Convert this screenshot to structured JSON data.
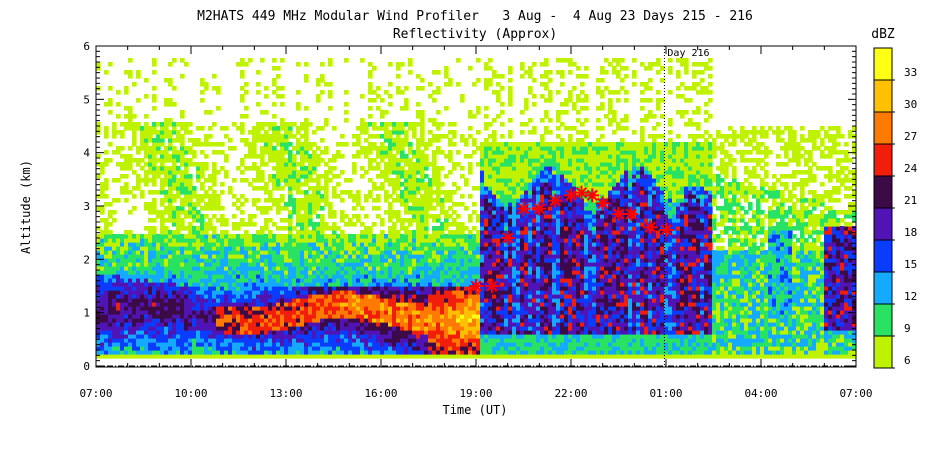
{
  "chart_data": {
    "type": "heatmap",
    "title": "M2HATS 449 MHz Modular Wind Profiler   3 Aug -  4 Aug 23 Days 215 - 216",
    "subtitle": "Reflectivity (Approx)",
    "xlabel": "Time (UT)",
    "ylabel": "Altitude (km)",
    "x_ticks": [
      "07:00",
      "10:00",
      "13:00",
      "16:00",
      "19:00",
      "22:00",
      "01:00",
      "04:00",
      "07:00"
    ],
    "x_range_hours": [
      0,
      24
    ],
    "y_ticks": [
      "0",
      "1",
      "2",
      "3",
      "4",
      "5",
      "6"
    ],
    "ylim": [
      0,
      6
    ],
    "day_marker": {
      "label": "Day 216",
      "hour": 17.95
    },
    "colorbar": {
      "title": "dBZ",
      "levels": [
        "6",
        "9",
        "12",
        "15",
        "18",
        "21",
        "24",
        "27",
        "30",
        "33"
      ],
      "colors": [
        "#bff200",
        "#29e264",
        "#14aaff",
        "#0a3cff",
        "#5014b4",
        "#3c0a46",
        "#f01e0a",
        "#ff7a00",
        "#ffc000",
        "#ffff14"
      ]
    },
    "markers": [
      {
        "h": 12.0,
        "km": 1.5
      },
      {
        "h": 12.5,
        "km": 1.5
      },
      {
        "h": 13.0,
        "km": 2.4
      },
      {
        "h": 13.5,
        "km": 2.95
      },
      {
        "h": 14.0,
        "km": 2.95
      },
      {
        "h": 14.5,
        "km": 3.1
      },
      {
        "h": 15.0,
        "km": 3.2
      },
      {
        "h": 15.33,
        "km": 3.25
      },
      {
        "h": 15.67,
        "km": 3.2
      },
      {
        "h": 16.0,
        "km": 3.05
      },
      {
        "h": 16.5,
        "km": 2.85
      },
      {
        "h": 16.9,
        "km": 2.85
      },
      {
        "h": 17.5,
        "km": 2.6
      },
      {
        "h": 18.0,
        "km": 2.55
      }
    ],
    "grid": false,
    "legend": "colorbar-right"
  }
}
